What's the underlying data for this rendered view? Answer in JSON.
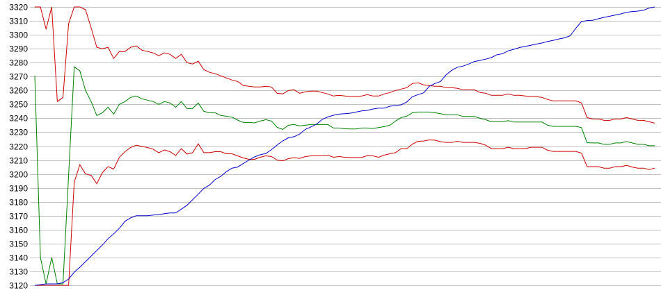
{
  "chart_data": {
    "type": "line",
    "title": "",
    "xlabel": "",
    "ylabel": "",
    "ylim": [
      3120,
      3320
    ],
    "y_ticks": [
      "3120",
      "3130",
      "3140",
      "3150",
      "3160",
      "3170",
      "3180",
      "3190",
      "3200",
      "3210",
      "3220",
      "3230",
      "3240",
      "3250",
      "3260",
      "3270",
      "3280",
      "3290",
      "3300",
      "3310",
      "3320"
    ],
    "grid": "horizontal",
    "x_axis_labels": "none",
    "colors": {
      "upper": "#cc0000",
      "middle": "#008000",
      "lower": "#cc0000",
      "price": "#0000cc",
      "grid": "#c0c0c0"
    },
    "series": [
      {
        "color": "#cc0000",
        "values": [
          3320,
          3320,
          3304,
          3320,
          3252,
          3255,
          3308,
          3320,
          3320,
          3318,
          3305,
          3291,
          3290,
          3291,
          3283,
          3288,
          3288,
          3291,
          3292,
          3289,
          3288,
          3287,
          3285,
          3287,
          3286,
          3283,
          3286,
          3280,
          3279,
          3281,
          3275,
          3273,
          3272,
          3270.5,
          3269,
          3267.5,
          3266.5,
          3263.5,
          3263,
          3262.5,
          3262.5,
          3263,
          3262.5,
          3258,
          3257.5,
          3260,
          3260.5,
          3258,
          3259,
          3259.5,
          3259.5,
          3258.5,
          3257.5,
          3256,
          3256.5,
          3256,
          3255.5,
          3255.5,
          3256,
          3257,
          3256,
          3256,
          3257.5,
          3258.5,
          3260,
          3261,
          3262,
          3265,
          3265.5,
          3264,
          3263.5,
          3263,
          3263,
          3262,
          3262,
          3261.5,
          3260.5,
          3260.5,
          3260.5,
          3258.5,
          3258,
          3256.5,
          3256.5,
          3256.5,
          3257.5,
          3256.5,
          3256.5,
          3256,
          3255.5,
          3255.5,
          3255,
          3253.5,
          3252.5,
          3252.5,
          3252.5,
          3252.5,
          3252.5,
          3251,
          3240.5,
          3239.5,
          3239.5,
          3238.5,
          3238.5,
          3239.5,
          3239.5,
          3240.5,
          3239.5,
          3238.5,
          3238.5,
          3237.5,
          3236.5
        ]
      },
      {
        "color": "#008000",
        "values": [
          3270.5,
          3140,
          3121,
          3140,
          3121,
          3121,
          3199,
          3277,
          3274,
          3260,
          3252,
          3242,
          3244,
          3248,
          3243,
          3250,
          3252,
          3255,
          3256,
          3254,
          3253,
          3252,
          3250,
          3252,
          3251,
          3248,
          3252,
          3247,
          3247,
          3251,
          3245,
          3244,
          3244,
          3242,
          3241.5,
          3240.8,
          3238.7,
          3237,
          3237,
          3236.7,
          3238,
          3239,
          3238,
          3233.5,
          3232,
          3235,
          3235.5,
          3234.5,
          3235,
          3235.5,
          3235.5,
          3235.5,
          3235.5,
          3233,
          3233,
          3232.5,
          3232.3,
          3232.3,
          3233,
          3233,
          3232.7,
          3233.3,
          3234,
          3235,
          3238,
          3240.5,
          3241.5,
          3244,
          3244.5,
          3244.5,
          3244.5,
          3244,
          3243.3,
          3242.5,
          3242.5,
          3242.5,
          3241.3,
          3241.3,
          3241.3,
          3240,
          3239,
          3237.5,
          3237.5,
          3237.5,
          3238.3,
          3237.3,
          3237.3,
          3237.3,
          3237.3,
          3237.3,
          3237.3,
          3235,
          3234.2,
          3234.2,
          3234.2,
          3234.2,
          3234.2,
          3233.3,
          3222.5,
          3222.3,
          3222.3,
          3221.3,
          3221.3,
          3222.3,
          3222.3,
          3223.3,
          3222.3,
          3221.3,
          3221.3,
          3220.3,
          3220.3
        ]
      },
      {
        "color": "#cc0000",
        "values": [
          3120,
          3120,
          3120,
          3120,
          3120,
          3120,
          3120,
          3194.2,
          3206.7,
          3200,
          3199,
          3193,
          3201,
          3205.3,
          3203.5,
          3212,
          3216,
          3219,
          3220.7,
          3219.8,
          3219,
          3217.8,
          3215.3,
          3217.3,
          3216,
          3213.3,
          3218.2,
          3214.3,
          3215.3,
          3221.7,
          3215.3,
          3215.3,
          3216,
          3216,
          3214.5,
          3214.5,
          3213,
          3211.5,
          3210.5,
          3210.5,
          3212,
          3213,
          3212.5,
          3210,
          3209.5,
          3211,
          3211.7,
          3211.2,
          3212.5,
          3213,
          3213,
          3213,
          3213.5,
          3212,
          3212.5,
          3212,
          3211.8,
          3211.8,
          3211.8,
          3213.2,
          3213,
          3212,
          3213.5,
          3214.5,
          3215.3,
          3218.2,
          3218.2,
          3221.5,
          3223.5,
          3223.7,
          3224.5,
          3224.3,
          3223.2,
          3222.7,
          3222.7,
          3223.5,
          3222.7,
          3222.7,
          3222.7,
          3222,
          3220.7,
          3218.2,
          3218.2,
          3218.2,
          3219.2,
          3218.2,
          3218.2,
          3218.2,
          3219.2,
          3219.2,
          3219.2,
          3217,
          3216.2,
          3216.2,
          3216.2,
          3216.2,
          3216.2,
          3215,
          3205.3,
          3205.3,
          3205.3,
          3204.2,
          3204.2,
          3205.3,
          3205.3,
          3206.2,
          3205,
          3204.2,
          3204.2,
          3203.2,
          3204.2
        ]
      },
      {
        "color": "#0000cc",
        "values": [
          3120,
          3120.5,
          3121,
          3121,
          3121,
          3122,
          3124.5,
          3129.5,
          3133,
          3137,
          3141,
          3145,
          3149,
          3153.5,
          3157,
          3161,
          3166,
          3168.5,
          3170,
          3170,
          3170,
          3170.5,
          3170.7,
          3171.5,
          3172,
          3172,
          3174.7,
          3177.5,
          3181.5,
          3185.5,
          3189.7,
          3192,
          3196,
          3198.3,
          3201.7,
          3204.2,
          3205,
          3207.5,
          3210,
          3212.3,
          3213.8,
          3214.7,
          3217.5,
          3220.8,
          3223.8,
          3226,
          3226.8,
          3228.7,
          3232,
          3233.8,
          3235.8,
          3239.2,
          3241,
          3242.2,
          3243,
          3243.3,
          3243.7,
          3244.5,
          3245.3,
          3245.7,
          3246.7,
          3247.3,
          3247.3,
          3248.7,
          3249.2,
          3249.7,
          3251.7,
          3255.5,
          3257,
          3258.3,
          3263,
          3265,
          3266.5,
          3271.3,
          3274.5,
          3276.7,
          3277.5,
          3279,
          3280.8,
          3281.6,
          3282.5,
          3283.6,
          3285.7,
          3286.4,
          3288.5,
          3289.6,
          3290.8,
          3291.6,
          3292.4,
          3293.3,
          3294.1,
          3295.2,
          3296,
          3297,
          3297.8,
          3299.3,
          3304.7,
          3309.5,
          3310.2,
          3310.4,
          3311.5,
          3312.5,
          3313.3,
          3314.2,
          3315,
          3316.1,
          3316.7,
          3317,
          3317.6,
          3319.2,
          3320
        ]
      }
    ]
  }
}
